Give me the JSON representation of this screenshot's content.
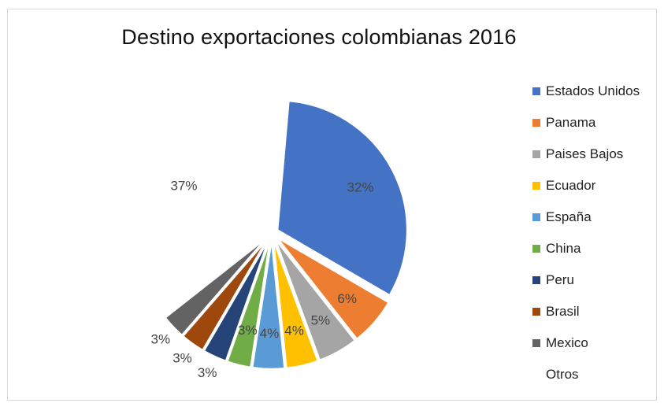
{
  "chart_data": {
    "type": "pie",
    "title": "Destino exportaciones colombianas 2016",
    "legend_position": "right",
    "slices": [
      {
        "name": "Estados Unidos",
        "value": 32,
        "label": "32%",
        "color": "#4472C4"
      },
      {
        "name": "Panama",
        "value": 6,
        "label": "6%",
        "color": "#ED7D31"
      },
      {
        "name": "Paises Bajos",
        "value": 5,
        "label": "5%",
        "color": "#A5A5A5"
      },
      {
        "name": "Ecuador",
        "value": 4,
        "label": "4%",
        "color": "#FFC000"
      },
      {
        "name": "España",
        "value": 4,
        "label": "4%",
        "color": "#5B9BD5"
      },
      {
        "name": "China",
        "value": 3,
        "label": "3%",
        "color": "#70AD47"
      },
      {
        "name": "Peru",
        "value": 3,
        "label": "3%",
        "color": "#264478"
      },
      {
        "name": "Brasil",
        "value": 3,
        "label": "3%",
        "color": "#9E480E"
      },
      {
        "name": "Mexico",
        "value": 3,
        "label": "3%",
        "color": "#636363"
      },
      {
        "name": "Otros",
        "value": 37,
        "label": "37%",
        "color": "#FFFFFF"
      }
    ]
  }
}
